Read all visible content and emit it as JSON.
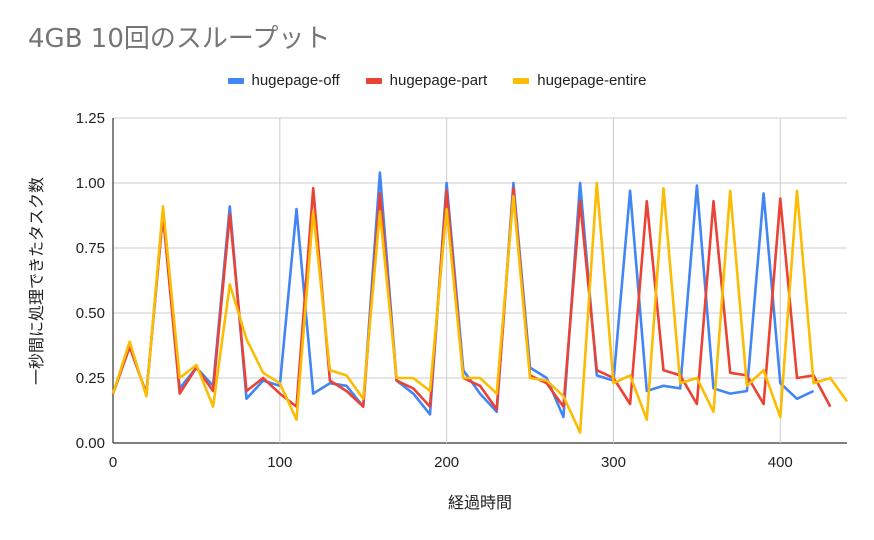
{
  "chart_data": {
    "type": "line",
    "title": "4GB 10回のスループット",
    "xlabel": "経過時間",
    "ylabel": "一秒間に処理できたタスク数",
    "xlim": [
      0,
      440
    ],
    "ylim": [
      0,
      1.25
    ],
    "xticks": [
      "0",
      "100",
      "200",
      "300",
      "400"
    ],
    "yticks": [
      "0.00",
      "0.25",
      "0.50",
      "0.75",
      "1.00",
      "1.25"
    ],
    "grid": true,
    "legend_position": "top",
    "series": [
      {
        "name": "hugepage-off",
        "color": "#4285f4",
        "x": [
          0,
          10,
          20,
          30,
          40,
          50,
          60,
          70,
          80,
          90,
          100,
          110,
          120,
          130,
          140,
          150,
          160,
          170,
          180,
          190,
          200,
          210,
          220,
          230,
          240,
          250,
          260,
          270,
          280,
          290,
          300,
          310,
          320,
          330,
          340,
          350,
          360,
          370,
          380,
          390,
          400,
          410,
          420
        ],
        "y": [
          0.19,
          0.37,
          0.19,
          0.88,
          0.21,
          0.29,
          0.22,
          0.91,
          0.17,
          0.24,
          0.22,
          0.9,
          0.19,
          0.23,
          0.22,
          0.14,
          1.04,
          0.24,
          0.19,
          0.11,
          1.0,
          0.28,
          0.19,
          0.12,
          1.0,
          0.29,
          0.25,
          0.1,
          1.0,
          0.26,
          0.24,
          0.97,
          0.2,
          0.22,
          0.21,
          0.99,
          0.21,
          0.19,
          0.2,
          0.96,
          0.23,
          0.17,
          0.2
        ]
      },
      {
        "name": "hugepage-part",
        "color": "#ea4335",
        "x": [
          0,
          10,
          20,
          30,
          40,
          50,
          60,
          70,
          80,
          90,
          100,
          110,
          120,
          130,
          140,
          150,
          160,
          170,
          180,
          190,
          200,
          210,
          220,
          230,
          240,
          250,
          260,
          270,
          280,
          290,
          300,
          310,
          320,
          330,
          340,
          350,
          360,
          370,
          380,
          390,
          400,
          410,
          420,
          430
        ],
        "y": [
          0.19,
          0.37,
          0.19,
          0.88,
          0.19,
          0.29,
          0.2,
          0.88,
          0.2,
          0.25,
          0.19,
          0.14,
          0.98,
          0.24,
          0.2,
          0.14,
          0.96,
          0.24,
          0.21,
          0.14,
          0.97,
          0.25,
          0.22,
          0.13,
          0.98,
          0.26,
          0.23,
          0.14,
          0.93,
          0.28,
          0.25,
          0.15,
          0.93,
          0.28,
          0.26,
          0.15,
          0.93,
          0.27,
          0.26,
          0.15,
          0.94,
          0.25,
          0.26,
          0.14
        ]
      },
      {
        "name": "hugepage-entire",
        "color": "#fbbc04",
        "x": [
          0,
          10,
          20,
          30,
          40,
          50,
          60,
          70,
          80,
          90,
          100,
          110,
          120,
          130,
          140,
          150,
          160,
          170,
          180,
          190,
          200,
          210,
          220,
          230,
          240,
          250,
          260,
          270,
          280,
          290,
          300,
          310,
          320,
          330,
          340,
          350,
          360,
          370,
          380,
          390,
          400,
          410,
          420,
          430,
          440
        ],
        "y": [
          0.19,
          0.39,
          0.18,
          0.91,
          0.25,
          0.3,
          0.14,
          0.61,
          0.4,
          0.27,
          0.23,
          0.09,
          0.89,
          0.28,
          0.26,
          0.17,
          0.89,
          0.25,
          0.25,
          0.2,
          0.9,
          0.25,
          0.25,
          0.19,
          0.95,
          0.25,
          0.24,
          0.18,
          0.04,
          1.0,
          0.23,
          0.26,
          0.09,
          0.98,
          0.23,
          0.25,
          0.12,
          0.97,
          0.22,
          0.28,
          0.1,
          0.97,
          0.23,
          0.25,
          0.16
        ]
      }
    ]
  }
}
